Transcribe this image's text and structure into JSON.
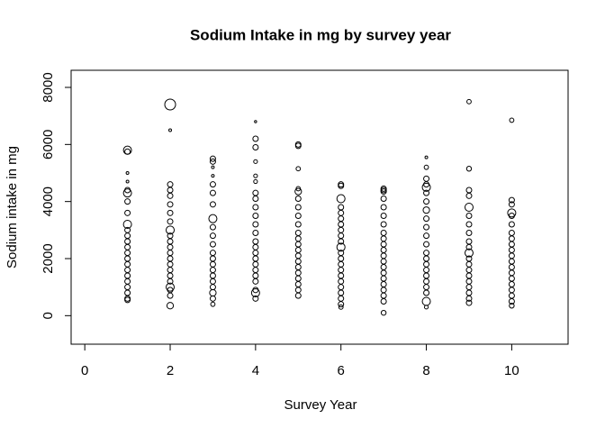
{
  "chart_data": {
    "type": "scatter",
    "title": "Sodium Intake in mg by survey year",
    "x_label": "Survey Year",
    "y_label": "Sodium intake in mg",
    "xlim": [
      -0.32,
      11.32
    ],
    "ylim": [
      -1000,
      8600
    ],
    "xticks": [
      0,
      2,
      4,
      6,
      8,
      10
    ],
    "yticks": [
      0,
      2000,
      4000,
      6000,
      8000
    ],
    "color": "#000000",
    "groups": [
      {
        "x": 1,
        "values": [
          5800,
          5750,
          5000,
          4700,
          4400,
          4300,
          4000,
          3600,
          3200,
          3000,
          2800,
          2600,
          2400,
          2200,
          2000,
          1800,
          1600,
          1400,
          1200,
          1000,
          800,
          600,
          550
        ],
        "sizes": [
          1.5,
          1,
          0.5,
          0.5,
          1,
          1.5,
          1,
          1,
          1.5,
          1,
          1,
          1,
          1,
          1,
          1,
          1,
          1,
          1,
          1,
          1,
          1,
          1,
          1
        ]
      },
      {
        "x": 2,
        "values": [
          7400,
          6500,
          4600,
          4400,
          4200,
          3900,
          3600,
          3300,
          3000,
          2800,
          2600,
          2400,
          2200,
          2000,
          1800,
          1600,
          1400,
          1200,
          1000,
          900,
          700,
          350
        ],
        "sizes": [
          2,
          0.5,
          1,
          1,
          1,
          1,
          1,
          1,
          1.5,
          1,
          1,
          1,
          1,
          1,
          1,
          1,
          1,
          1,
          1.5,
          1,
          1,
          1.2
        ]
      },
      {
        "x": 3,
        "values": [
          5500,
          5400,
          5200,
          4900,
          4600,
          4300,
          3900,
          3400,
          3100,
          2800,
          2500,
          2200,
          2000,
          1800,
          1600,
          1400,
          1200,
          1000,
          800,
          600,
          400
        ],
        "sizes": [
          1,
          1,
          0.5,
          0.5,
          1,
          1,
          1,
          1.5,
          1,
          1,
          1,
          1,
          1,
          1,
          1,
          1,
          1,
          1,
          1.2,
          1,
          0.8
        ]
      },
      {
        "x": 4,
        "values": [
          6800,
          6200,
          5900,
          5400,
          4900,
          4700,
          4300,
          4100,
          3800,
          3500,
          3200,
          2900,
          2600,
          2400,
          2200,
          2000,
          1800,
          1600,
          1400,
          1200,
          900,
          800,
          600
        ],
        "sizes": [
          0.4,
          1,
          1,
          0.7,
          0.7,
          0.7,
          1,
          1,
          1,
          1,
          1,
          1,
          1,
          1,
          1,
          1,
          1,
          1,
          1,
          1,
          1,
          1.5,
          1
        ]
      },
      {
        "x": 5,
        "values": [
          6000,
          5950,
          5150,
          4450,
          4350,
          4100,
          3800,
          3500,
          3200,
          2900,
          2700,
          2500,
          2300,
          2100,
          1900,
          1700,
          1500,
          1300,
          1100,
          900,
          700
        ],
        "sizes": [
          1,
          1,
          0.8,
          0.8,
          1.2,
          1,
          1,
          1,
          1,
          1,
          1,
          1,
          1,
          1,
          1,
          1,
          1,
          1,
          1,
          1,
          1
        ]
      },
      {
        "x": 6,
        "values": [
          4600,
          4550,
          4100,
          3800,
          3600,
          3400,
          3200,
          3000,
          2800,
          2600,
          2400,
          2200,
          2000,
          1800,
          1600,
          1400,
          1200,
          1000,
          800,
          600,
          400,
          300
        ],
        "sizes": [
          1,
          1,
          1.5,
          1,
          1,
          1,
          1,
          1,
          1,
          1,
          1.5,
          1,
          1,
          1,
          1,
          1,
          1,
          1,
          1,
          1,
          1,
          0.8
        ]
      },
      {
        "x": 7,
        "values": [
          4450,
          4400,
          4350,
          4100,
          3800,
          3500,
          3200,
          2900,
          2700,
          2500,
          2300,
          2100,
          1900,
          1700,
          1500,
          1300,
          1100,
          900,
          700,
          500,
          100
        ],
        "sizes": [
          1,
          1,
          1,
          1,
          1,
          1,
          1,
          1,
          1,
          1,
          1,
          1,
          1,
          1,
          1,
          1,
          1,
          1,
          1,
          1,
          0.9
        ]
      },
      {
        "x": 8,
        "values": [
          5550,
          5200,
          4800,
          4600,
          4500,
          4300,
          4000,
          3700,
          3400,
          3100,
          2800,
          2500,
          2200,
          2000,
          1800,
          1600,
          1400,
          1200,
          1000,
          800,
          500,
          300
        ],
        "sizes": [
          0.5,
          0.8,
          1,
          1,
          1.5,
          1,
          1,
          1.2,
          1,
          1,
          1,
          1,
          1,
          1,
          1,
          1,
          1,
          1,
          1,
          1,
          1.5,
          0.7
        ]
      },
      {
        "x": 9,
        "values": [
          7500,
          5150,
          4400,
          4200,
          3800,
          3500,
          3200,
          2900,
          2600,
          2400,
          2200,
          2000,
          1800,
          1600,
          1400,
          1200,
          1000,
          800,
          600,
          450
        ],
        "sizes": [
          0.8,
          0.9,
          1,
          1,
          1.5,
          1,
          1,
          1,
          1,
          1,
          1.5,
          1,
          1,
          1,
          1,
          1,
          1,
          1,
          1,
          1
        ]
      },
      {
        "x": 10,
        "values": [
          6850,
          4050,
          3900,
          3600,
          3500,
          3200,
          2900,
          2700,
          2500,
          2300,
          2100,
          1900,
          1700,
          1500,
          1300,
          1100,
          900,
          700,
          500,
          350
        ],
        "sizes": [
          0.8,
          1,
          1,
          1.5,
          1,
          1,
          1,
          1,
          1,
          1,
          1,
          1,
          1,
          1,
          1,
          1,
          1,
          1,
          1,
          0.9
        ]
      }
    ]
  }
}
